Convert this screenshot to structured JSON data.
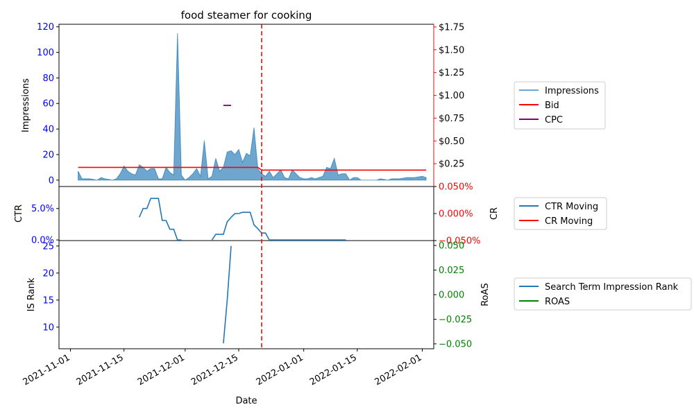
{
  "chart_data": {
    "type": "area",
    "title": "food steamer for cooking",
    "xlabel": "Date",
    "x_ticks": [
      "2021-11-01",
      "2021-11-15",
      "2021-12-01",
      "2021-12-15",
      "2022-01-01",
      "2022-01-15",
      "2022-02-01"
    ],
    "reference_line": {
      "date": "2021-12-21",
      "color": "#ff0000",
      "style": "dashed"
    },
    "colors": {
      "impressions": "#1f77b4",
      "bid": "#ff0000",
      "cpc": "#800080",
      "ctr": "#1f77b4",
      "cr": "#ff0000",
      "is_rank": "#1f77b4",
      "roas": "#008000",
      "left_ticks": "#0000ff",
      "cr_ticks": "#ff0000",
      "roas_ticks": "#008000"
    },
    "panels": [
      {
        "id": "top",
        "ylabel": "Impressions",
        "ylim": [
          -5,
          122
        ],
        "yticks": [
          0,
          20,
          40,
          60,
          80,
          100,
          120
        ],
        "y2lim": [
          0,
          1.78
        ],
        "y2ticks": [
          "$0.25",
          "$0.50",
          "$0.75",
          "$1.00",
          "$1.25",
          "$1.50",
          "$1.75"
        ],
        "y2tick_values": [
          0.25,
          0.5,
          0.75,
          1.0,
          1.25,
          1.5,
          1.75
        ],
        "legend": [
          "Impressions",
          "Bid",
          "CPC"
        ],
        "impressions": {
          "x": [
            "2021-11-03",
            "2021-11-04",
            "2021-11-06",
            "2021-11-08",
            "2021-11-09",
            "2021-11-10",
            "2021-11-12",
            "2021-11-13",
            "2021-11-14",
            "2021-11-15",
            "2021-11-16",
            "2021-11-17",
            "2021-11-18",
            "2021-11-19",
            "2021-11-20",
            "2021-11-21",
            "2021-11-22",
            "2021-11-23",
            "2021-11-24",
            "2021-11-25",
            "2021-11-26",
            "2021-11-27",
            "2021-11-28",
            "2021-11-29",
            "2021-11-30",
            "2021-12-01",
            "2021-12-02",
            "2021-12-03",
            "2021-12-04",
            "2021-12-05",
            "2021-12-06",
            "2021-12-07",
            "2021-12-08",
            "2021-12-09",
            "2021-12-10",
            "2021-12-11",
            "2021-12-12",
            "2021-12-13",
            "2021-12-14",
            "2021-12-15",
            "2021-12-16",
            "2021-12-17",
            "2021-12-18",
            "2021-12-19",
            "2021-12-20",
            "2021-12-21",
            "2021-12-22",
            "2021-12-23",
            "2021-12-24",
            "2021-12-25",
            "2021-12-26",
            "2021-12-27",
            "2021-12-28",
            "2021-12-29",
            "2021-12-30",
            "2021-12-31",
            "2022-01-01",
            "2022-01-02",
            "2022-01-03",
            "2022-01-04",
            "2022-01-05",
            "2022-01-06",
            "2022-01-07",
            "2022-01-08",
            "2022-01-09",
            "2022-01-10",
            "2022-01-11",
            "2022-01-12",
            "2022-01-13",
            "2022-01-14",
            "2022-01-15",
            "2022-01-16",
            "2022-01-18",
            "2022-01-20",
            "2022-01-21",
            "2022-01-23",
            "2022-01-24",
            "2022-01-26",
            "2022-01-28",
            "2022-01-30",
            "2022-02-01",
            "2022-02-02"
          ],
          "y": [
            7,
            1,
            1,
            0,
            2,
            1,
            0,
            1,
            5,
            11,
            7,
            5,
            4,
            12,
            10,
            7,
            9,
            9,
            1,
            1,
            10,
            6,
            4,
            115,
            4,
            0,
            2,
            5,
            9,
            3,
            31,
            1,
            3,
            17,
            7,
            10,
            22,
            23,
            20,
            24,
            14,
            21,
            19,
            41,
            9,
            5,
            3,
            7,
            2,
            5,
            8,
            2,
            1,
            8,
            5,
            2,
            1,
            1,
            2,
            1,
            2,
            3,
            10,
            9,
            17,
            4,
            5,
            5,
            0,
            2,
            2,
            0,
            0,
            0,
            1,
            0,
            1,
            1,
            2,
            2,
            3,
            2
          ]
        },
        "bid": {
          "x": [
            "2021-11-03",
            "2021-12-20",
            "2021-12-21",
            "2022-02-02"
          ],
          "y": [
            0.21,
            0.21,
            0.18,
            0.18
          ]
        },
        "cpc": {
          "x": [
            "2021-12-11",
            "2021-12-13"
          ],
          "y": [
            0.89,
            0.89
          ]
        }
      },
      {
        "id": "middle",
        "ylabel": "CTR",
        "ylim": [
          -0.1,
          8.5
        ],
        "yticks": [
          0,
          5
        ],
        "ytick_labels": [
          "0.0%",
          "5.0%"
        ],
        "y2label": "CR",
        "y2lim": [
          -0.05,
          0.05
        ],
        "y2ticks": [
          "-0.050%",
          "0.000%",
          "0.050%"
        ],
        "y2tick_values": [
          -0.05,
          0.0,
          0.05
        ],
        "legend": [
          "CTR Moving",
          "CR Moving"
        ],
        "ctr_segments": [
          {
            "x": [
              "2021-11-19",
              "2021-11-20",
              "2021-11-21",
              "2021-11-22",
              "2021-11-23",
              "2021-11-24",
              "2021-11-25",
              "2021-11-26",
              "2021-11-27",
              "2021-11-28",
              "2021-11-29",
              "2021-11-30"
            ],
            "y": [
              3.6,
              5.0,
              5.0,
              6.6,
              6.6,
              6.6,
              3.1,
              3.1,
              1.7,
              1.7,
              0.0,
              0.0
            ]
          },
          {
            "x": [
              "2021-12-08",
              "2021-12-09",
              "2021-12-10",
              "2021-12-11",
              "2021-12-12",
              "2021-12-13",
              "2021-12-14",
              "2021-12-15",
              "2021-12-16",
              "2021-12-17",
              "2021-12-18",
              "2021-12-19",
              "2021-12-20",
              "2021-12-21",
              "2021-12-22",
              "2021-12-23",
              "2022-01-12"
            ],
            "y": [
              0.0,
              0.9,
              0.9,
              0.9,
              2.9,
              3.6,
              4.2,
              4.2,
              4.4,
              4.4,
              4.4,
              2.4,
              1.8,
              1.1,
              1.1,
              0.0,
              0.0
            ]
          }
        ]
      },
      {
        "id": "bottom",
        "ylabel": "IS Rank",
        "ylim": [
          6,
          26
        ],
        "yticks": [
          10,
          15,
          20,
          25
        ],
        "y2label": "RoAS",
        "y2lim": [
          -0.055,
          0.055
        ],
        "y2ticks": [
          "-0.050",
          "-0.025",
          "0.000",
          "0.025",
          "0.050"
        ],
        "y2tick_values": [
          -0.05,
          -0.025,
          0.0,
          0.025,
          0.05
        ],
        "legend": [
          "Search Term Impression Rank",
          "ROAS"
        ],
        "is_rank": {
          "x": [
            "2021-12-11",
            "2021-12-12",
            "2021-12-13"
          ],
          "y": [
            7,
            15,
            25
          ]
        }
      }
    ]
  }
}
